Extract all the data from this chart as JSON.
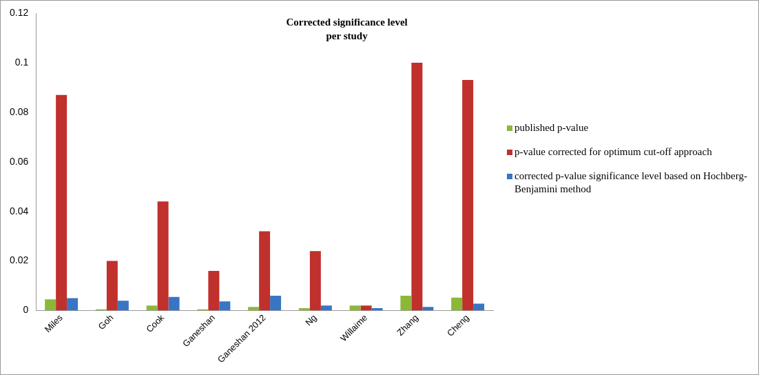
{
  "chart_data": {
    "type": "bar",
    "title": "Corrected significance level per study",
    "categories": [
      "Miles",
      "Goh",
      "Cook",
      "Ganeshan",
      "Ganeshan 2012",
      "Ng",
      "Willaime",
      "Zhang",
      "Cheng"
    ],
    "series": [
      {
        "name": "published p-value",
        "color": "#8cb83a",
        "values": [
          0.0045,
          0.0005,
          0.002,
          0.0005,
          0.0015,
          0.001,
          0.002,
          0.006,
          0.0052
        ]
      },
      {
        "name": "p-value corrected for optimum cut-off approach",
        "color": "#c0302c",
        "values": [
          0.087,
          0.02,
          0.044,
          0.016,
          0.032,
          0.024,
          0.002,
          0.1,
          0.093
        ]
      },
      {
        "name": "corrected p-value significance level based on Hochberg-Benjamini method",
        "color": "#3a75c4",
        "values": [
          0.005,
          0.004,
          0.0055,
          0.0037,
          0.006,
          0.002,
          0.001,
          0.0015,
          0.0028
        ]
      }
    ],
    "ylim": [
      0,
      0.12
    ],
    "yticks": [
      0,
      0.02,
      0.04,
      0.06,
      0.08,
      0.1,
      0.12
    ],
    "grid": false,
    "legend": "right"
  }
}
